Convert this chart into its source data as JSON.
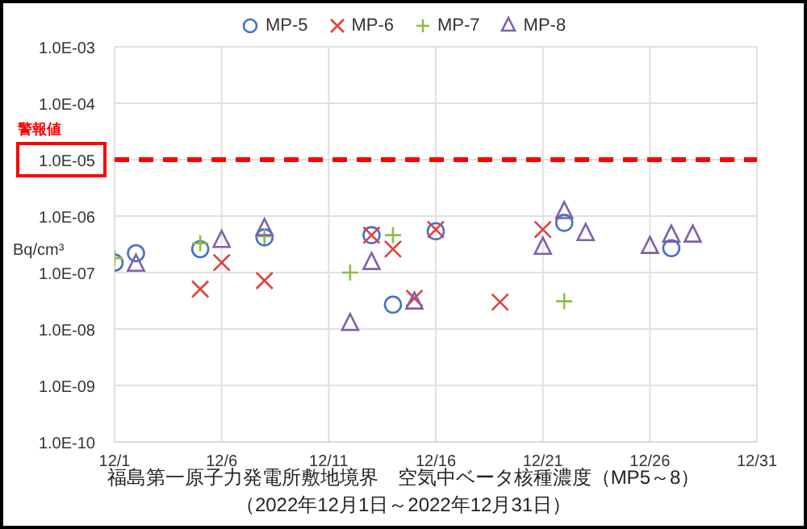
{
  "chart_data": {
    "type": "scatter",
    "title": "福島第一原子力発電所敷地境界　空気中ベータ核種濃度（MP5～8）",
    "subtitle": "（2022年12月1日～2022年12月31日）",
    "ylabel": "Bq/cm³",
    "log": "y",
    "grid": true,
    "legend": "top",
    "xlim": [
      "2022-12-01",
      "2022-12-31"
    ],
    "xticks": [
      {
        "value": "2022-12-01",
        "label": "12/1"
      },
      {
        "value": "2022-12-06",
        "label": "12/6"
      },
      {
        "value": "2022-12-11",
        "label": "12/11"
      },
      {
        "value": "2022-12-16",
        "label": "12/16"
      },
      {
        "value": "2022-12-21",
        "label": "12/21"
      },
      {
        "value": "2022-12-26",
        "label": "12/26"
      },
      {
        "value": "2022-12-31",
        "label": "12/31"
      }
    ],
    "ylim": [
      1e-10,
      0.001
    ],
    "yticks": [
      {
        "value": 1e-10,
        "label": "1.0E-10"
      },
      {
        "value": 1e-09,
        "label": "1.0E-09"
      },
      {
        "value": 1e-08,
        "label": "1.0E-08"
      },
      {
        "value": 1e-07,
        "label": "1.0E-07"
      },
      {
        "value": 1e-06,
        "label": "1.0E-06"
      },
      {
        "value": 1e-05,
        "label": "1.0E-05"
      },
      {
        "value": 0.0001,
        "label": "1.0E-04"
      },
      {
        "value": 0.001,
        "label": "1.0E-03"
      }
    ],
    "ref_lines": [
      {
        "axis": "y",
        "value": 1e-05,
        "label": "警報値",
        "color": "#ff0000",
        "line_style": "dashed"
      }
    ],
    "series": [
      {
        "name": "MP-5",
        "color": "#4472c4",
        "marker": "circle",
        "x": [
          "2022-12-01",
          "2022-12-02",
          "2022-12-05",
          "2022-12-08",
          "2022-12-13",
          "2022-12-14",
          "2022-12-16",
          "2022-12-22",
          "2022-12-27"
        ],
        "values": [
          1.5e-07,
          2.2e-07,
          2.6e-07,
          4.2e-07,
          4.6e-07,
          2.7e-08,
          5.4e-07,
          7.6e-07,
          2.7e-07
        ]
      },
      {
        "name": "MP-6",
        "color": "#e0403a",
        "marker": "cross",
        "x": [
          "2022-12-05",
          "2022-12-06",
          "2022-12-08",
          "2022-12-13",
          "2022-12-14",
          "2022-12-15",
          "2022-12-16",
          "2022-12-19",
          "2022-12-21"
        ],
        "values": [
          5.1e-08,
          1.5e-07,
          7.2e-08,
          4.6e-07,
          2.6e-07,
          3.5e-08,
          5.8e-07,
          3e-08,
          5.8e-07
        ]
      },
      {
        "name": "MP-7",
        "color": "#8fbc45",
        "marker": "plus",
        "x": [
          "2022-12-01",
          "2022-12-05",
          "2022-12-08",
          "2022-12-12",
          "2022-12-14",
          "2022-12-22"
        ],
        "values": [
          1.8e-07,
          3.3e-07,
          4.4e-07,
          1e-07,
          4.6e-07,
          3.1e-08
        ]
      },
      {
        "name": "MP-8",
        "color": "#7f60a8",
        "marker": "triangle",
        "x": [
          "2022-12-02",
          "2022-12-06",
          "2022-12-08",
          "2022-12-12",
          "2022-12-13",
          "2022-12-15",
          "2022-12-21",
          "2022-12-22",
          "2022-12-23",
          "2022-12-26",
          "2022-12-27",
          "2022-12-28"
        ],
        "values": [
          1.4e-07,
          3.7e-07,
          6e-07,
          1.25e-08,
          1.5e-07,
          3e-08,
          2.8e-07,
          1.2e-06,
          4.9e-07,
          2.9e-07,
          4.6e-07,
          4.6e-07
        ]
      }
    ]
  }
}
